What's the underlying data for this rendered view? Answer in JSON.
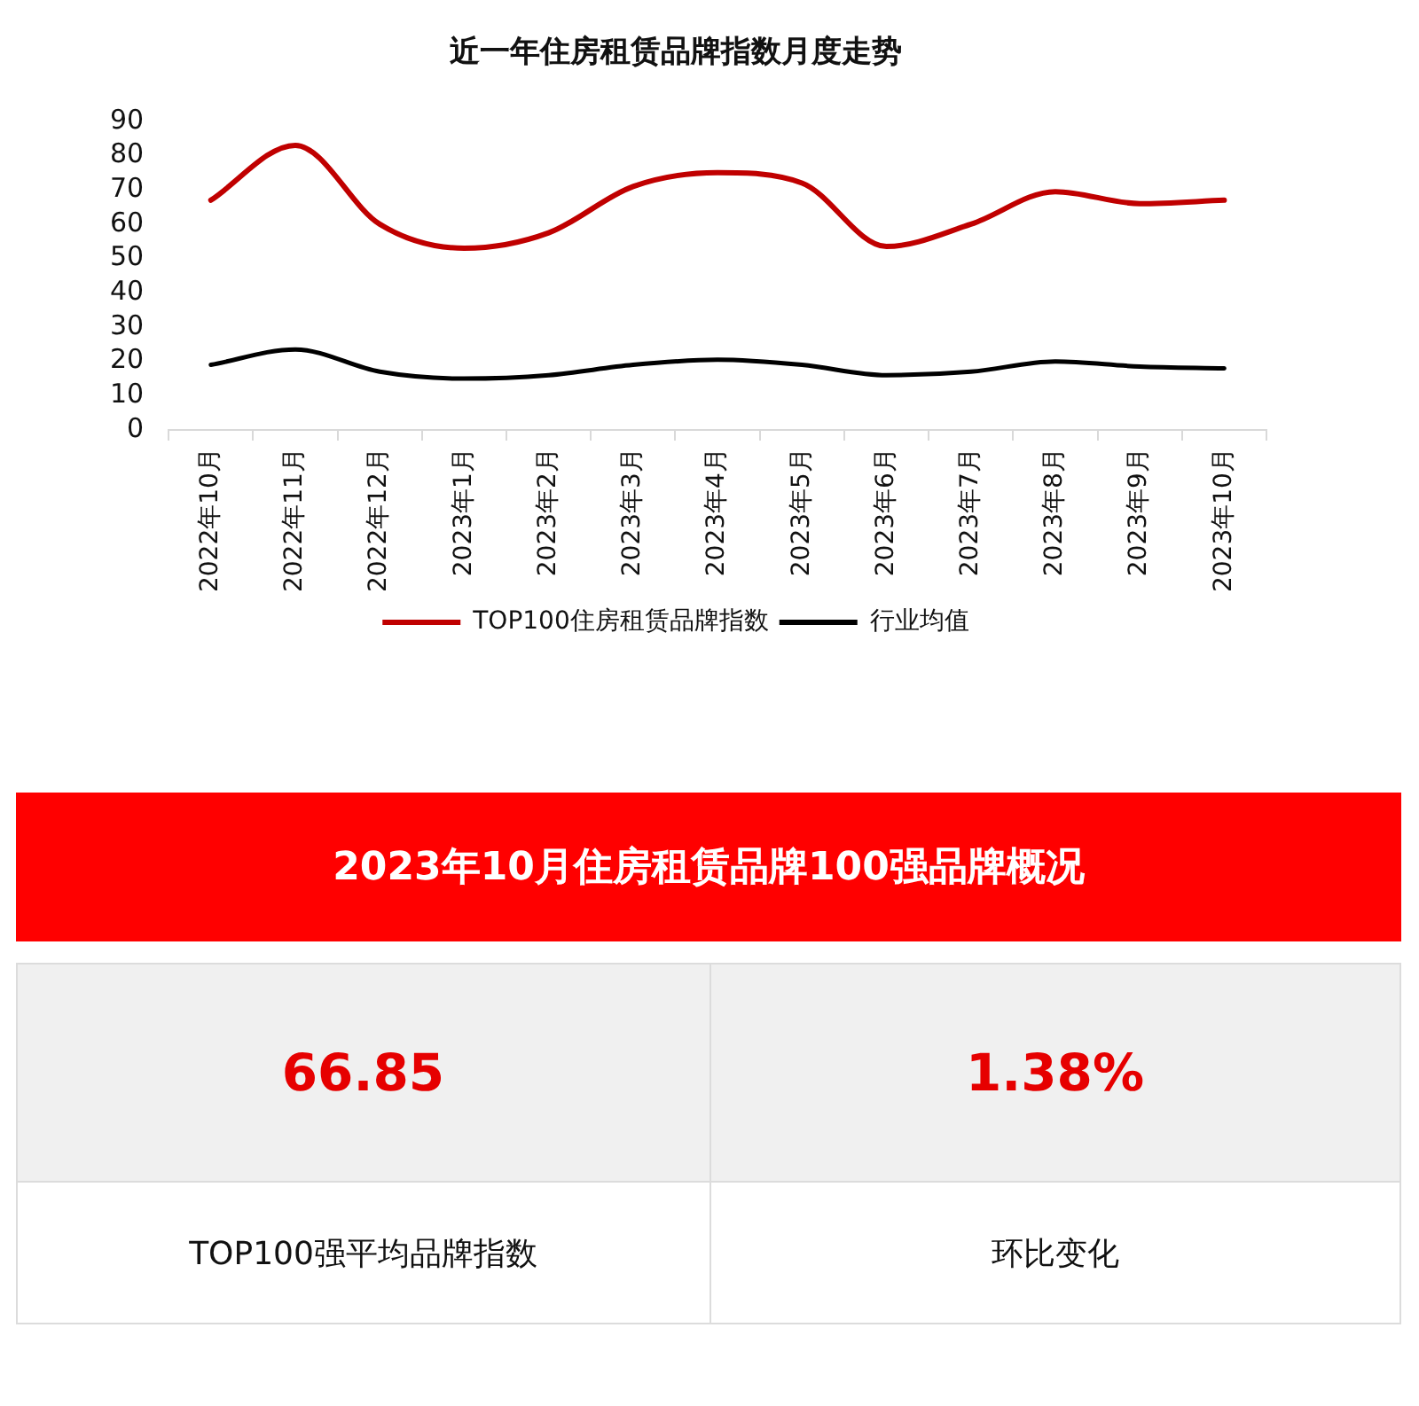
{
  "chart_data": [
    {
      "type": "line",
      "title": "近一年住房租赁品牌指数月度走势",
      "categories": [
        "2022年10月",
        "2022年11月",
        "2022年12月",
        "2023年1月",
        "2023年2月",
        "2023年3月",
        "2023年4月",
        "2023年5月",
        "2023年6月",
        "2023年7月",
        "2023年8月",
        "2023年9月",
        "2023年10月"
      ],
      "series": [
        {
          "name": "TOP100住房租赁品牌指数",
          "color": "#c00000",
          "values": [
            67,
            83,
            60,
            53,
            57.5,
            71,
            75,
            72,
            53.5,
            60,
            69.5,
            66,
            67
          ]
        },
        {
          "name": "行业均值",
          "color": "#000000",
          "values": [
            19,
            23.5,
            17,
            15,
            16,
            19,
            20.5,
            19,
            16,
            17,
            20,
            18.5,
            18
          ]
        }
      ],
      "ylim": [
        0,
        90
      ],
      "yticks": [
        0,
        10,
        20,
        30,
        40,
        50,
        60,
        70,
        80,
        90
      ],
      "grid": false,
      "legend": "bottom",
      "marker": "none",
      "line_style": "solid"
    },
    {
      "type": "other",
      "title": "2023年10月住房租赁品牌100强品牌概况",
      "annotations": [
        "66.85",
        "1.38%",
        "TOP100强平均品牌指数",
        "环比变化"
      ]
    }
  ]
}
